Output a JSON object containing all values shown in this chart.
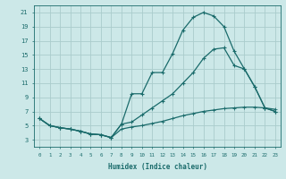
{
  "xlabel": "Humidex (Indice chaleur)",
  "background_color": "#cce8e8",
  "grid_color": "#aacccc",
  "line_color": "#1a6b6b",
  "xlim": [
    -0.5,
    23.5
  ],
  "ylim": [
    2.0,
    22.0
  ],
  "yticks": [
    3,
    5,
    7,
    9,
    11,
    13,
    15,
    17,
    19,
    21
  ],
  "xticks": [
    0,
    1,
    2,
    3,
    4,
    5,
    6,
    7,
    8,
    9,
    10,
    11,
    12,
    13,
    14,
    15,
    16,
    17,
    18,
    19,
    20,
    21,
    22,
    23
  ],
  "curve1_x": [
    0,
    1,
    2,
    3,
    4,
    5,
    6,
    7,
    8,
    9,
    10,
    11,
    12,
    13,
    14,
    15,
    16,
    17,
    18,
    19,
    20,
    21,
    22,
    23
  ],
  "curve1_y": [
    6,
    5,
    4.7,
    4.5,
    4.2,
    3.8,
    3.7,
    3.3,
    5.2,
    9.5,
    9.5,
    12.5,
    12.5,
    15.2,
    18.5,
    20.3,
    21.0,
    20.5,
    19.0,
    15.5,
    13.0,
    10.5,
    7.5,
    7.0
  ],
  "curve2_x": [
    0,
    1,
    2,
    3,
    4,
    5,
    6,
    7,
    8,
    9,
    10,
    11,
    12,
    13,
    14,
    15,
    16,
    17,
    18,
    19,
    20,
    21,
    22,
    23
  ],
  "curve2_y": [
    6,
    5,
    4.7,
    4.5,
    4.2,
    3.8,
    3.7,
    3.3,
    5.2,
    5.5,
    6.5,
    7.5,
    8.5,
    9.5,
    11.0,
    12.5,
    14.5,
    15.8,
    16.0,
    13.5,
    13.0,
    10.5,
    7.5,
    7.0
  ],
  "curve3_x": [
    0,
    1,
    2,
    3,
    4,
    5,
    6,
    7,
    8,
    9,
    10,
    11,
    12,
    13,
    14,
    15,
    16,
    17,
    18,
    19,
    20,
    21,
    22,
    23
  ],
  "curve3_y": [
    6,
    5,
    4.7,
    4.5,
    4.2,
    3.8,
    3.7,
    3.3,
    4.5,
    4.8,
    5.0,
    5.3,
    5.6,
    6.0,
    6.4,
    6.7,
    7.0,
    7.2,
    7.4,
    7.5,
    7.6,
    7.6,
    7.5,
    7.3
  ]
}
